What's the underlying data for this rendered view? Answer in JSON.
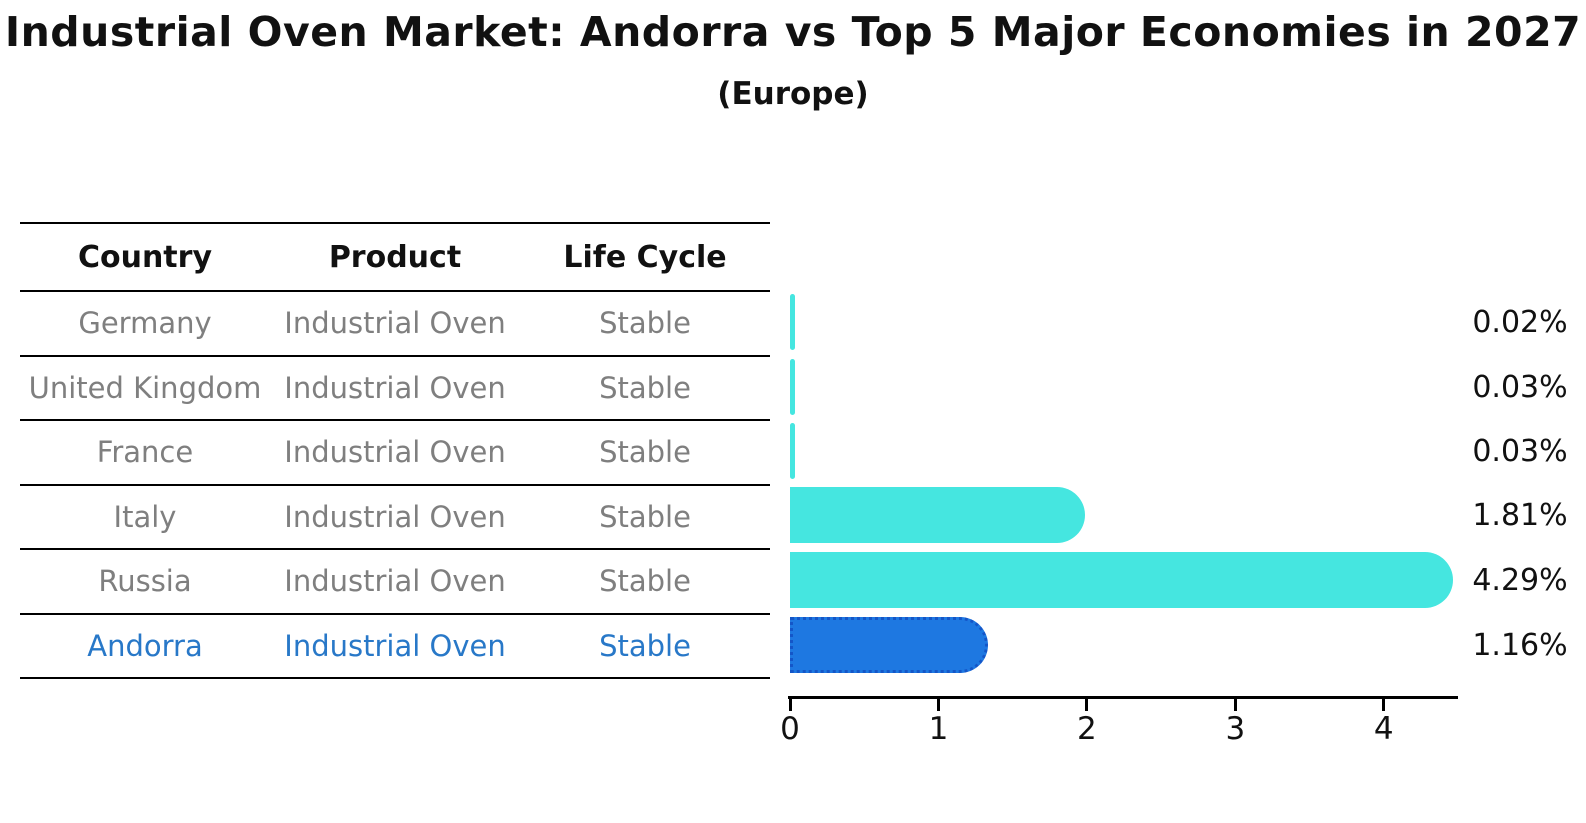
{
  "title": "Industrial Oven Market: Andorra vs Top 5 Major Economies in 2027",
  "subtitle": "(Europe)",
  "table": {
    "headers": [
      "Country",
      "Product",
      "Life Cycle"
    ],
    "rows": [
      {
        "country": "Germany",
        "product": "Industrial Oven",
        "life_cycle": "Stable",
        "highlight": false
      },
      {
        "country": "United Kingdom",
        "product": "Industrial Oven",
        "life_cycle": "Stable",
        "highlight": false
      },
      {
        "country": "France",
        "product": "Industrial Oven",
        "life_cycle": "Stable",
        "highlight": false
      },
      {
        "country": "Italy",
        "product": "Industrial Oven",
        "life_cycle": "Stable",
        "highlight": false
      },
      {
        "country": "Russia",
        "product": "Industrial Oven",
        "life_cycle": "Stable",
        "highlight": false
      },
      {
        "country": "Andorra",
        "product": "Industrial Oven",
        "life_cycle": "Stable",
        "highlight": true
      }
    ]
  },
  "chart_data": {
    "type": "bar",
    "orientation": "horizontal",
    "title": "Industrial Oven Market: Andorra vs Top 5 Major Economies in 2027",
    "subtitle": "(Europe)",
    "categories": [
      "Germany",
      "United Kingdom",
      "France",
      "Italy",
      "Russia",
      "Andorra"
    ],
    "values": [
      0.02,
      0.03,
      0.03,
      1.81,
      4.29,
      1.16
    ],
    "value_labels": [
      "0.02%",
      "0.03%",
      "0.03%",
      "1.81%",
      "4.29%",
      "1.16%"
    ],
    "xticks": [
      "0",
      "1",
      "2",
      "3",
      "4"
    ],
    "xlim": [
      0,
      4.5
    ],
    "grid": false,
    "legend": false,
    "bar_color": "#45e6e0",
    "highlight_index": 5,
    "highlight_color": "#1e78e1",
    "highlight_border_color": "#1456c8",
    "muted_text_color": "#7f7f7f",
    "highlight_text_color": "#2878c8"
  }
}
